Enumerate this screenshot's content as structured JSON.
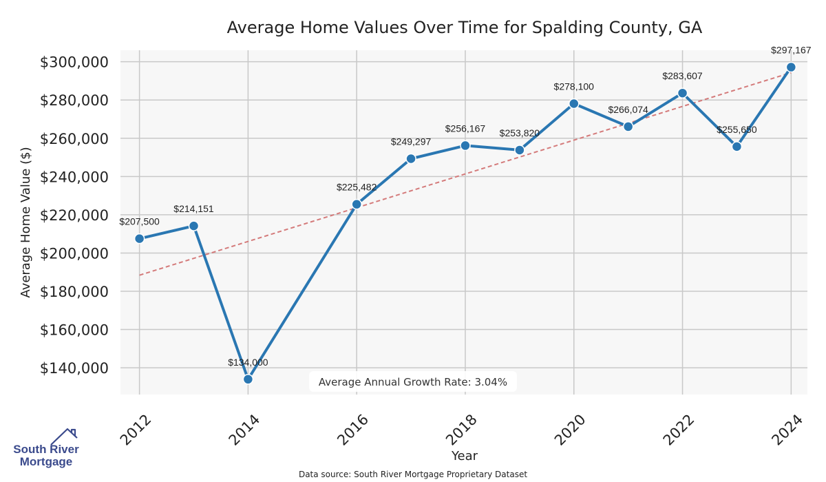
{
  "chart_data": {
    "type": "line",
    "title": "Average Home Values Over Time for Spalding County, GA",
    "xlabel": "Year",
    "ylabel": "Average Home Value ($)",
    "x": [
      2012,
      2013,
      2014,
      2016,
      2017,
      2018,
      2019,
      2020,
      2021,
      2022,
      2023,
      2024
    ],
    "values": [
      207500,
      214151,
      134000,
      225482,
      249297,
      256167,
      253820,
      278100,
      266074,
      283607,
      255650,
      297167
    ],
    "labels": [
      "$207,500",
      "$214,151",
      "$134,000",
      "$225,482",
      "$249,297",
      "$256,167",
      "$253,820",
      "$278,100",
      "$266,074",
      "$283,607",
      "$255,650",
      "$297,167"
    ],
    "xticks": [
      2012,
      2014,
      2016,
      2018,
      2020,
      2022,
      2024
    ],
    "xtick_labels": [
      "2012",
      "2014",
      "2016",
      "2018",
      "2020",
      "2022",
      "2024"
    ],
    "yticks": [
      140000,
      160000,
      180000,
      200000,
      220000,
      240000,
      260000,
      280000,
      300000
    ],
    "ytick_labels": [
      "$140,000",
      "$160,000",
      "$180,000",
      "$200,000",
      "$220,000",
      "$240,000",
      "$260,000",
      "$280,000",
      "$300,000"
    ],
    "xlim": [
      2011.65,
      2024.3
    ],
    "ylim": [
      126000,
      306000
    ],
    "trend_line": {
      "x": [
        2012,
        2024
      ],
      "y": [
        188400,
        294300
      ]
    },
    "annotation": "Average Annual Growth Rate: 3.04%",
    "grid": true,
    "line_color": "#2a77b2",
    "trend_color": "#d47a7a"
  },
  "footer": {
    "source": "Data source: South River Mortgage Proprietary Dataset"
  },
  "logo": {
    "line1": "South River",
    "line2": "Mortgage",
    "icon": "house-icon"
  }
}
